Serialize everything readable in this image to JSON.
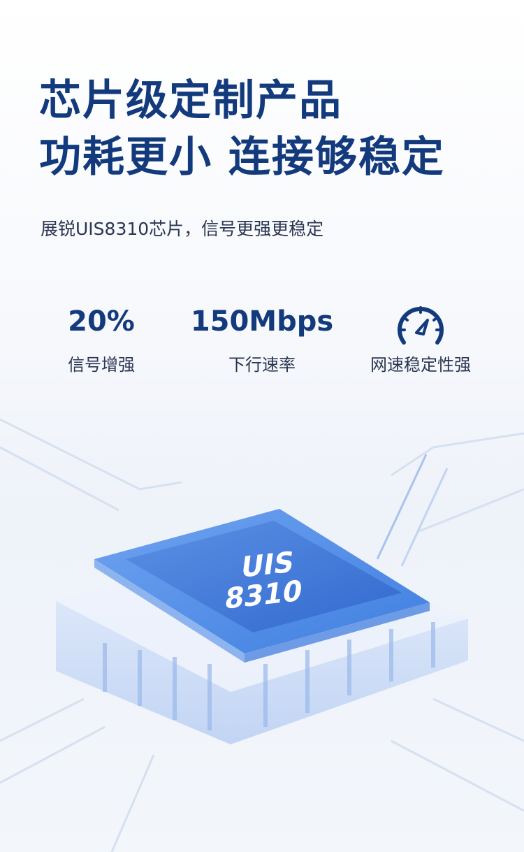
{
  "headline": {
    "line1": "芯片级定制产品",
    "line2": "功耗更小 连接够稳定"
  },
  "subtitle": "展锐UIS8310芯片，信号更强更稳定",
  "stats": [
    {
      "value": "20%",
      "label": "信号增强"
    },
    {
      "value": "150Mbps",
      "label": "下行速率"
    },
    {
      "icon": "speedometer-icon",
      "label": "网速稳定性强"
    }
  ],
  "chip": {
    "line1": "UIS",
    "line2": "8310"
  },
  "colors": {
    "headline": "#133a7c",
    "chip_blue": "#3f7fe0"
  }
}
